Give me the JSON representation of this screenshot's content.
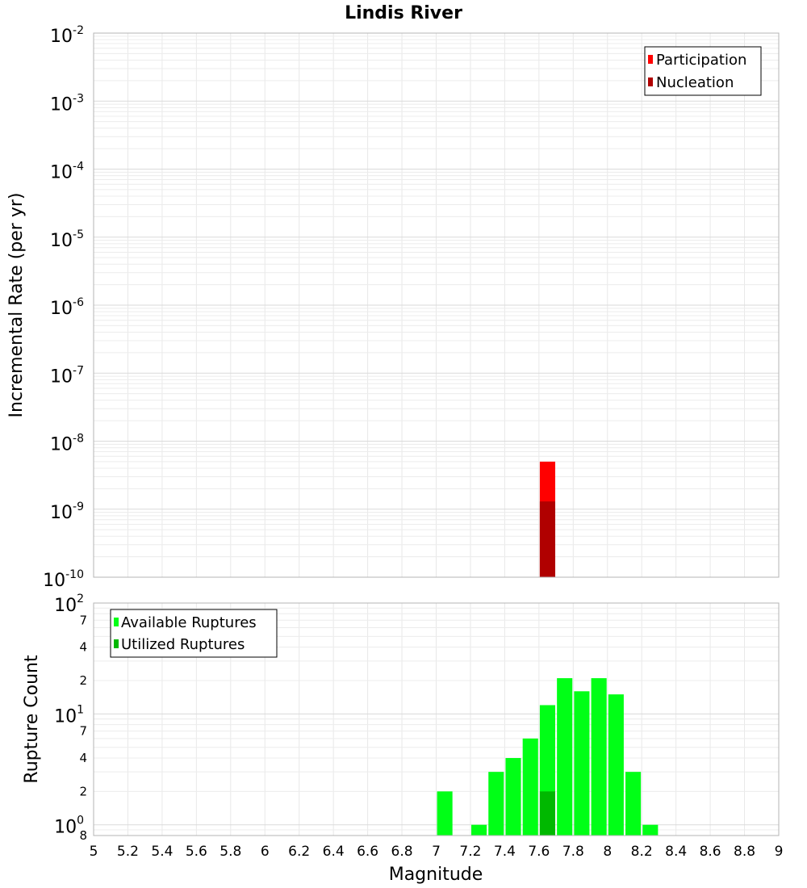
{
  "chart_data": {
    "title": "Lindis River",
    "xlabel": "Magnitude",
    "xlim": [
      5,
      9
    ],
    "xticks": [
      "5",
      "5.2",
      "5.4",
      "5.6",
      "5.8",
      "6",
      "6.2",
      "6.4",
      "6.6",
      "6.8",
      "7",
      "7.2",
      "7.4",
      "7.6",
      "7.8",
      "8",
      "8.2",
      "8.4",
      "8.6",
      "8.8",
      "9"
    ],
    "panels": [
      {
        "type": "bar",
        "ylabel": "Incremental Rate (per yr)",
        "yscale": "log",
        "ylim": [
          1e-10,
          0.01
        ],
        "grid": true,
        "legend_position": "top-right",
        "yticks": [
          {
            "base": "10",
            "exp": "-2"
          },
          {
            "base": "10",
            "exp": "-3"
          },
          {
            "base": "10",
            "exp": "-4"
          },
          {
            "base": "10",
            "exp": "-5"
          },
          {
            "base": "10",
            "exp": "-6"
          },
          {
            "base": "10",
            "exp": "-7"
          },
          {
            "base": "10",
            "exp": "-8"
          },
          {
            "base": "10",
            "exp": "-9"
          },
          {
            "base": "10",
            "exp": "-10"
          }
        ],
        "series": [
          {
            "name": "Participation",
            "color": "#ff0000",
            "x": [
              7.65
            ],
            "values": [
              5e-09
            ]
          },
          {
            "name": "Nucleation",
            "color": "#b00000",
            "x": [
              7.65
            ],
            "values": [
              1.3e-09
            ]
          }
        ]
      },
      {
        "type": "bar",
        "ylabel": "Rupture Count",
        "yscale": "log",
        "ylim": [
          0.8,
          100
        ],
        "grid": true,
        "legend_position": "top-left",
        "yticks": [
          {
            "base": "10",
            "exp": "2",
            "value": 100
          },
          {
            "label": "7",
            "value": 70
          },
          {
            "label": "4",
            "value": 40
          },
          {
            "label": "2",
            "value": 20
          },
          {
            "base": "10",
            "exp": "1",
            "value": 10
          },
          {
            "label": "7",
            "value": 7
          },
          {
            "label": "4",
            "value": 4
          },
          {
            "label": "2",
            "value": 2
          },
          {
            "base": "10",
            "exp": "0",
            "value": 1
          },
          {
            "label": "8",
            "value": 0.8
          }
        ],
        "series": [
          {
            "name": "Available Ruptures",
            "color": "#00ff16",
            "x": [
              7.05,
              7.25,
              7.35,
              7.45,
              7.55,
              7.65,
              7.75,
              7.85,
              7.95,
              8.05,
              8.15,
              8.25
            ],
            "values": [
              2,
              1,
              3,
              4,
              6,
              12,
              21,
              16,
              21,
              15,
              3,
              1
            ]
          },
          {
            "name": "Utilized Ruptures",
            "color": "#00b800",
            "x": [
              7.65
            ],
            "values": [
              2
            ]
          }
        ]
      }
    ]
  }
}
